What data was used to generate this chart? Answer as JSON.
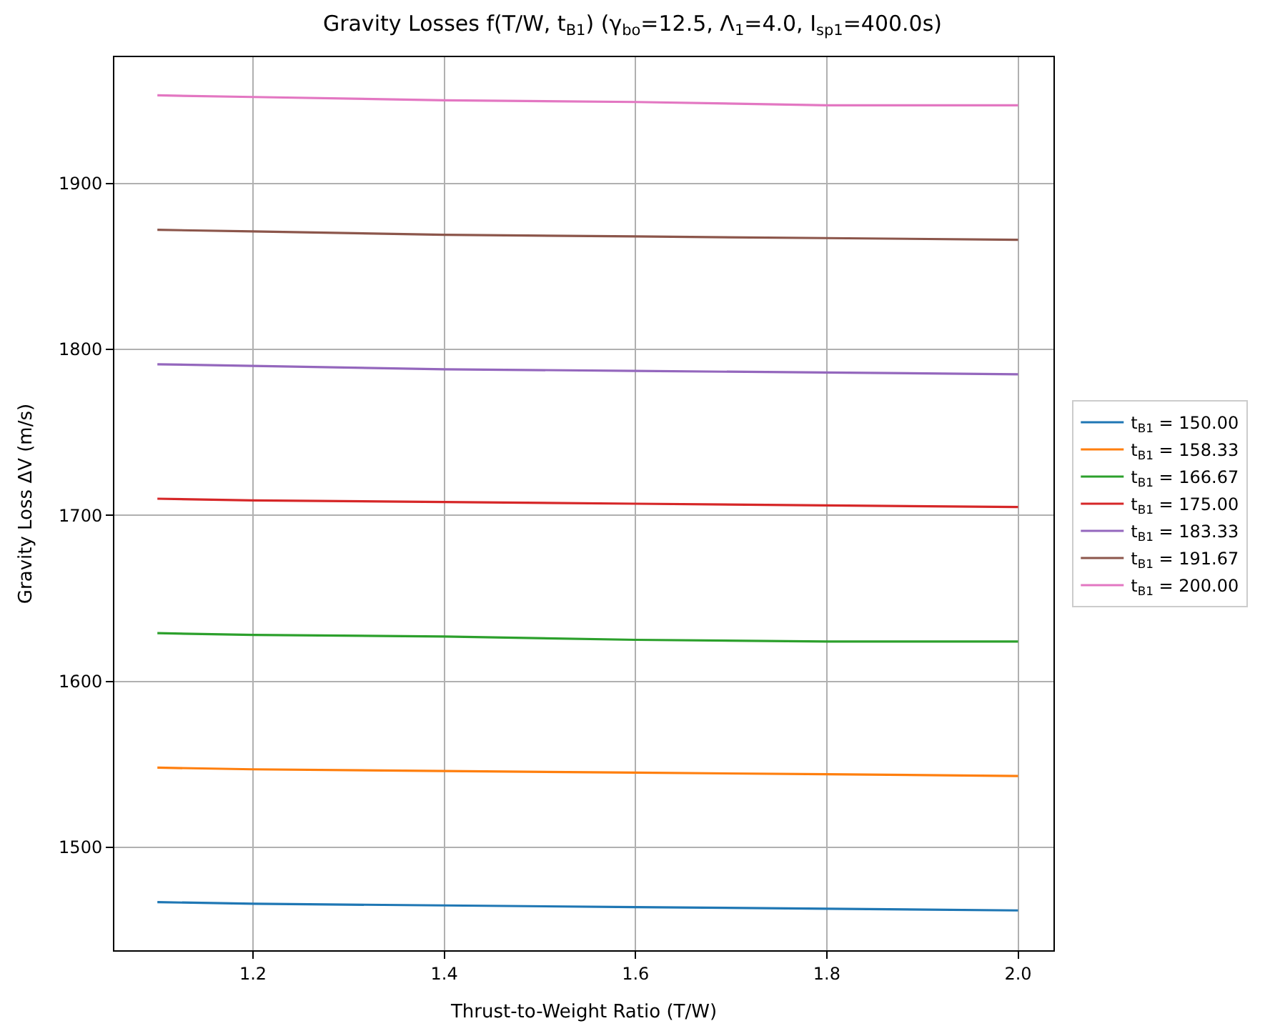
{
  "chart_data": {
    "type": "line",
    "title": "Gravity Losses f(T/W, t$_{B1}$) (γ$_{bo}$=12.5, Λ$_{1}$=4.0, I$_{sp1}$=400.0s)",
    "xlabel": "Thrust-to-Weight Ratio (T/W)",
    "ylabel": "Gravity Loss ΔV (m/s)",
    "x": [
      1.1,
      1.2,
      1.4,
      1.6,
      1.8,
      2.0
    ],
    "series": [
      {
        "name": "t$_{B1}$ = 150.00",
        "color": "#1f77b4",
        "values": [
          1467,
          1466,
          1465,
          1464,
          1463,
          1462
        ]
      },
      {
        "name": "t$_{B1}$ = 158.33",
        "color": "#ff7f0e",
        "values": [
          1548,
          1547,
          1546,
          1545,
          1544,
          1543
        ]
      },
      {
        "name": "t$_{B1}$ = 166.67",
        "color": "#2ca02c",
        "values": [
          1629,
          1628,
          1627,
          1625,
          1624,
          1624
        ]
      },
      {
        "name": "t$_{B1}$ = 175.00",
        "color": "#d62728",
        "values": [
          1710,
          1709,
          1708,
          1707,
          1706,
          1705
        ]
      },
      {
        "name": "t$_{B1}$ = 183.33",
        "color": "#9467bd",
        "values": [
          1791,
          1790,
          1788,
          1787,
          1786,
          1785
        ]
      },
      {
        "name": "t$_{B1}$ = 191.67",
        "color": "#8c564b",
        "values": [
          1872,
          1871,
          1869,
          1868,
          1867,
          1866
        ]
      },
      {
        "name": "t$_{B1}$ = 200.00",
        "color": "#e377c2",
        "values": [
          1953,
          1952,
          1950,
          1949,
          1947,
          1947
        ]
      }
    ],
    "xlim": [
      1.055,
      2.037
    ],
    "xticks": [
      {
        "value": 1.2,
        "label": "1.2"
      },
      {
        "value": 1.4,
        "label": "1.4"
      },
      {
        "value": 1.6,
        "label": "1.6"
      },
      {
        "value": 1.8,
        "label": "1.8"
      },
      {
        "value": 2.0,
        "label": "2.0"
      }
    ],
    "ylim": [
      1438,
      1976
    ],
    "yticks": [
      1500,
      1600,
      1700,
      1800,
      1900
    ],
    "grid": true,
    "legend": "right",
    "marker": "none",
    "line_style": "solid"
  }
}
